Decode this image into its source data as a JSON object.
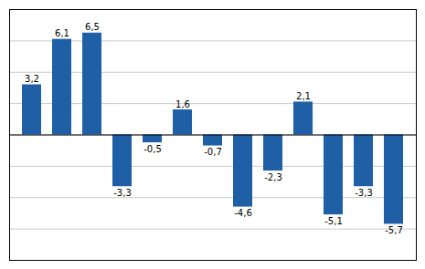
{
  "chart_data": {
    "type": "bar",
    "categories": [
      null,
      null,
      null,
      null,
      null,
      null,
      null,
      null,
      null,
      null,
      null,
      null,
      null
    ],
    "values": [
      3.2,
      6.1,
      6.5,
      -3.3,
      -0.5,
      1.6,
      -0.7,
      -4.6,
      -2.3,
      2.1,
      -5.1,
      -3.3,
      -5.7
    ],
    "value_labels": [
      "3,2",
      "6,1",
      "6,5",
      "-3,3",
      "-0,5",
      "1,6",
      "-0,7",
      "-4,6",
      "-2,3",
      "2,1",
      "-5,1",
      "-3,3",
      "-5,7"
    ],
    "color": "#1F5FA6",
    "ylim": [
      -8,
      8
    ],
    "yticks": [
      -6,
      -4,
      -2,
      0,
      2,
      4,
      6
    ],
    "grid": true,
    "data_labels": true,
    "tick_labels": false
  }
}
